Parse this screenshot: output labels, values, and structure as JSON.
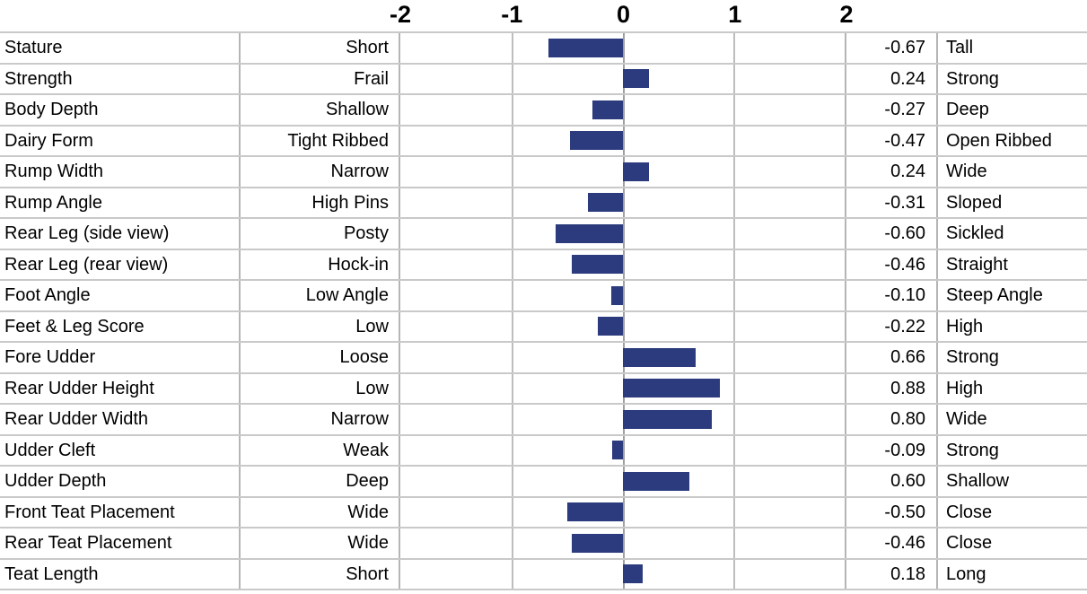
{
  "chart_data": {
    "type": "bar",
    "orientation": "horizontal",
    "title": "",
    "xlim": [
      -2,
      2
    ],
    "tick_labels": [
      "-2",
      "-1",
      "0",
      "1",
      "2"
    ],
    "gridlines": [
      -2,
      -1,
      0,
      1,
      2
    ],
    "grid": true,
    "bar_color": "#2B3B7D",
    "categories": [
      "Stature",
      "Strength",
      "Body Depth",
      "Dairy Form",
      "Rump Width",
      "Rump Angle",
      "Rear Leg (side view)",
      "Rear Leg (rear view)",
      "Foot Angle",
      "Feet & Leg Score",
      "Fore Udder",
      "Rear Udder Height",
      "Rear Udder Width",
      "Udder Cleft",
      "Udder Depth",
      "Front Teat Placement",
      "Rear Teat Placement",
      "Teat Length"
    ],
    "low_labels": [
      "Short",
      "Frail",
      "Shallow",
      "Tight Ribbed",
      "Narrow",
      "High Pins",
      "Posty",
      "Hock-in",
      "Low Angle",
      "Low",
      "Loose",
      "Low",
      "Narrow",
      "Weak",
      "Deep",
      "Wide",
      "Wide",
      "Short"
    ],
    "high_labels": [
      "Tall",
      "Strong",
      "Deep",
      "Open Ribbed",
      "Wide",
      "Sloped",
      "Sickled",
      "Straight",
      "Steep Angle",
      "High",
      "Strong",
      "High",
      "Wide",
      "Strong",
      "Shallow",
      "Close",
      "Close",
      "Long"
    ],
    "values": [
      -0.67,
      0.24,
      -0.27,
      -0.47,
      0.24,
      -0.31,
      -0.6,
      -0.46,
      -0.1,
      -0.22,
      0.66,
      0.88,
      0.8,
      -0.09,
      0.6,
      -0.5,
      -0.46,
      0.18
    ],
    "value_labels": [
      "-0.67",
      "0.24",
      "-0.27",
      "-0.47",
      "0.24",
      "-0.31",
      "-0.60",
      "-0.46",
      "-0.10",
      "-0.22",
      "0.66",
      "0.88",
      "0.80",
      "-0.09",
      "0.60",
      "-0.50",
      "-0.46",
      "0.18"
    ]
  }
}
